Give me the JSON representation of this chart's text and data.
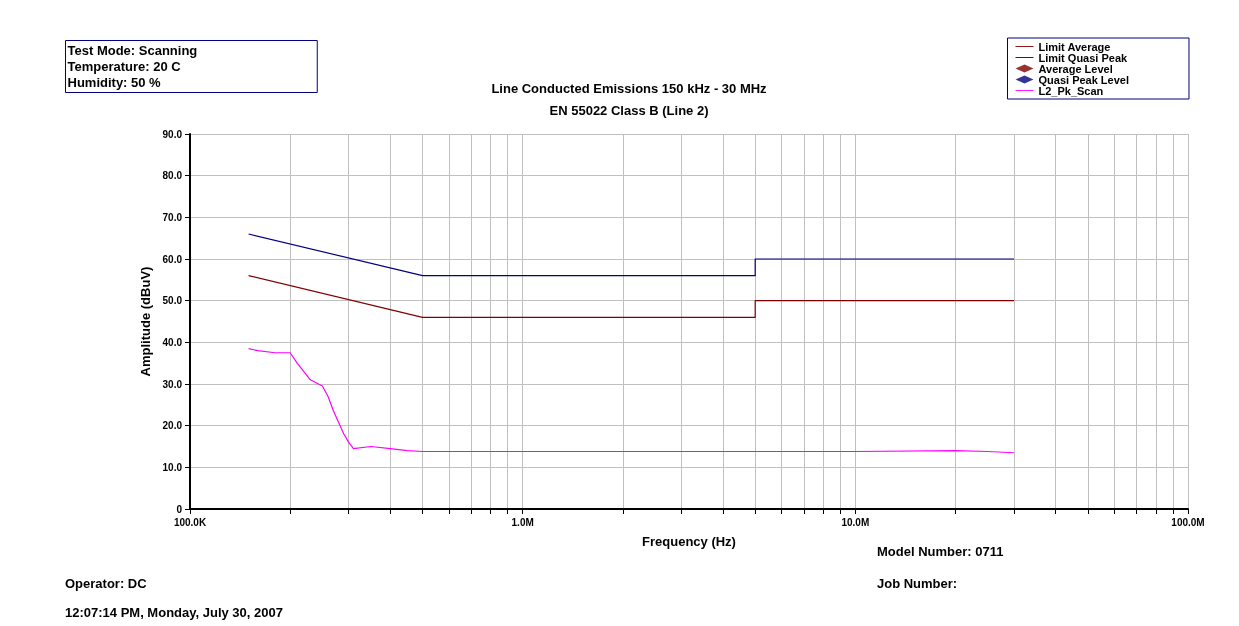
{
  "chart_data": {
    "type": "line",
    "subtitle": "Line Conducted Emissions 150 kHz - 30 MHz\nEN 55022 Class B (Line 2)",
    "xlabel": "Frequency (Hz)",
    "ylabel": "Amplitude (dBuV)",
    "annotations": [
      "Test Mode: Scanning\nTemperature: 20 C\nHumidity: 50 %",
      "Model Number: 0711",
      "Operator: DC",
      "Job Number:",
      "12:07:14 PM, Monday, July 30, 2007"
    ],
    "log": "x",
    "grid": true,
    "legend": "top right",
    "xlim": [
      100000,
      100000000
    ],
    "xticks": [
      {
        "value": 100000,
        "label": "100.0K"
      },
      {
        "value": 200000,
        "label": null
      },
      {
        "value": 300000,
        "label": null
      },
      {
        "value": 400000,
        "label": null
      },
      {
        "value": 500000,
        "label": null
      },
      {
        "value": 600000,
        "label": null
      },
      {
        "value": 700000,
        "label": null
      },
      {
        "value": 800000,
        "label": null
      },
      {
        "value": 900000,
        "label": null
      },
      {
        "value": 1000000,
        "label": "1.0M"
      },
      {
        "value": 2000000,
        "label": null
      },
      {
        "value": 3000000,
        "label": null
      },
      {
        "value": 4000000,
        "label": null
      },
      {
        "value": 5000000,
        "label": null
      },
      {
        "value": 6000000,
        "label": null
      },
      {
        "value": 7000000,
        "label": null
      },
      {
        "value": 8000000,
        "label": null
      },
      {
        "value": 9000000,
        "label": null
      },
      {
        "value": 10000000,
        "label": "10.0M"
      },
      {
        "value": 20000000,
        "label": null
      },
      {
        "value": 30000000,
        "label": null
      },
      {
        "value": 40000000,
        "label": null
      },
      {
        "value": 50000000,
        "label": null
      },
      {
        "value": 60000000,
        "label": null
      },
      {
        "value": 70000000,
        "label": null
      },
      {
        "value": 80000000,
        "label": null
      },
      {
        "value": 90000000,
        "label": null
      },
      {
        "value": 100000000,
        "label": "100.0M"
      }
    ],
    "ylim": [
      0,
      90
    ],
    "yticks": [
      {
        "value": 0,
        "label": "0"
      },
      {
        "value": 10,
        "label": "10.0"
      },
      {
        "value": 20,
        "label": "20.0"
      },
      {
        "value": 30,
        "label": "30.0"
      },
      {
        "value": 40,
        "label": "40.0"
      },
      {
        "value": 50,
        "label": "50.0"
      },
      {
        "value": 60,
        "label": "60.0"
      },
      {
        "value": 70,
        "label": "70.0"
      },
      {
        "value": 80,
        "label": "80.0"
      },
      {
        "value": 90,
        "label": "90.0"
      }
    ],
    "series": [
      {
        "name": "Limit Average",
        "color": "#800000",
        "marker": "none",
        "x": [
          150000,
          500000,
          5000000,
          5000000,
          30000000
        ],
        "values": [
          56,
          46,
          46,
          50,
          50
        ]
      },
      {
        "name": "Limit Quasi Peak",
        "color": "#000080",
        "marker": "none",
        "x": [
          150000,
          500000,
          5000000,
          5000000,
          30000000
        ],
        "values": [
          66,
          56,
          56,
          60,
          60
        ]
      },
      {
        "name": "Average Level",
        "color": "#800000",
        "marker": "diamond",
        "type": "scatter"
      },
      {
        "name": "Quasi Peak Level",
        "color": "#000080",
        "marker": "diamond",
        "type": "scatter"
      },
      {
        "name": "L2_Pk_Scan",
        "color": "#ff00ff",
        "marker": "none",
        "x": [
          150000,
          160000,
          180000,
          200000,
          210000,
          230000,
          250000,
          260000,
          270000,
          290000,
          300000,
          310000,
          350000,
          400000,
          450000,
          500000,
          1000000,
          5000000,
          10000000,
          20000000,
          25000000,
          30000000
        ],
        "values": [
          38.5,
          38,
          37.5,
          37.5,
          35,
          31,
          29.5,
          27,
          23.5,
          18,
          16,
          14.5,
          15,
          14.5,
          14,
          13.8,
          13.8,
          13.8,
          13.8,
          14,
          13.8,
          13.5
        ]
      }
    ]
  }
}
